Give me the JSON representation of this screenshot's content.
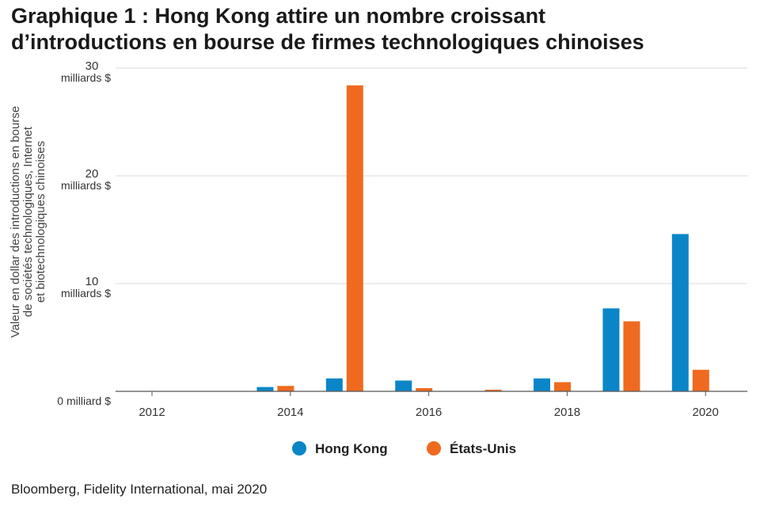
{
  "title_line1": "Graphique 1 : Hong Kong attire un nombre croissant",
  "title_line2": "d’introductions en bourse de firmes technologiques chinoises",
  "source": "Bloomberg, Fidelity International, mai 2020",
  "chart_data": {
    "type": "bar",
    "categories": [
      "2012",
      "2013",
      "2014",
      "2015",
      "2016",
      "2017",
      "2018",
      "2019",
      "2020"
    ],
    "x_tick_labels": [
      "2012",
      "2014",
      "2016",
      "2018",
      "2020"
    ],
    "ylabel_lines": [
      "Valeur en dollar des introductions en bourse",
      "de sociétés technologiques, Internet",
      "et biotechnologiques chinoises"
    ],
    "y_ticks": [
      {
        "value": 0,
        "number": "",
        "unit": "0 milliard $"
      },
      {
        "value": 10,
        "number": "10",
        "unit": "milliards $"
      },
      {
        "value": 20,
        "number": "20",
        "unit": "milliards $"
      },
      {
        "value": 30,
        "number": "30",
        "unit": "milliards $"
      }
    ],
    "ylim": [
      0,
      30
    ],
    "grid": true,
    "legend_position": "bottom",
    "series": [
      {
        "name": "Hong Kong",
        "color": "#0a86c8",
        "values": [
          0,
          0.4,
          1.2,
          1.0,
          0,
          1.2,
          7.7,
          14.6,
          0
        ]
      },
      {
        "name": "États-Unis",
        "color": "#ef6a1f",
        "values": [
          0,
          0.5,
          28.4,
          0.3,
          0.15,
          0.85,
          6.5,
          2.0,
          0.7
        ]
      }
    ]
  }
}
